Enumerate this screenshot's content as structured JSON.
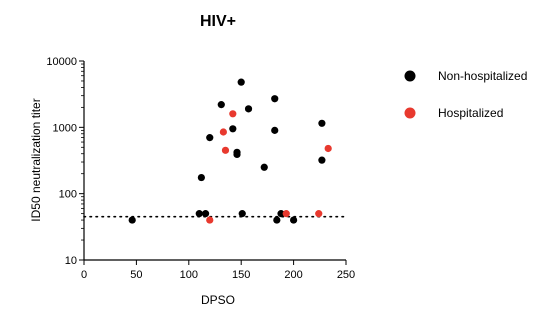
{
  "chart_data": {
    "type": "scatter",
    "title": "HIV+",
    "xlabel": "DPSO",
    "ylabel": "ID50 neutralization titer",
    "xlim": [
      0,
      250
    ],
    "ylim": [
      10,
      10000
    ],
    "yscale": "log",
    "x_ticks": [
      "0",
      "50",
      "100",
      "150",
      "200",
      "250"
    ],
    "y_ticks": [
      "10",
      "100",
      "1000",
      "10000"
    ],
    "threshold": 45,
    "legend_position": "right",
    "series": [
      {
        "name": "Non-hospitalized",
        "color": "#000000",
        "points": [
          [
            46,
            40
          ],
          [
            110,
            50
          ],
          [
            112,
            175
          ],
          [
            116,
            50
          ],
          [
            120,
            700
          ],
          [
            131,
            2200
          ],
          [
            142,
            950
          ],
          [
            146,
            420
          ],
          [
            146,
            390
          ],
          [
            150,
            4800
          ],
          [
            151,
            50
          ],
          [
            157,
            1900
          ],
          [
            172,
            250
          ],
          [
            182,
            2700
          ],
          [
            182,
            900
          ],
          [
            184,
            40
          ],
          [
            188,
            50
          ],
          [
            200,
            40
          ],
          [
            227,
            1150
          ],
          [
            227,
            320
          ]
        ]
      },
      {
        "name": "Hospitalized",
        "color": "#e8392e",
        "points": [
          [
            120,
            40
          ],
          [
            133,
            850
          ],
          [
            135,
            450
          ],
          [
            142,
            1600
          ],
          [
            193,
            50
          ],
          [
            224,
            50
          ],
          [
            233,
            480
          ]
        ]
      }
    ]
  }
}
